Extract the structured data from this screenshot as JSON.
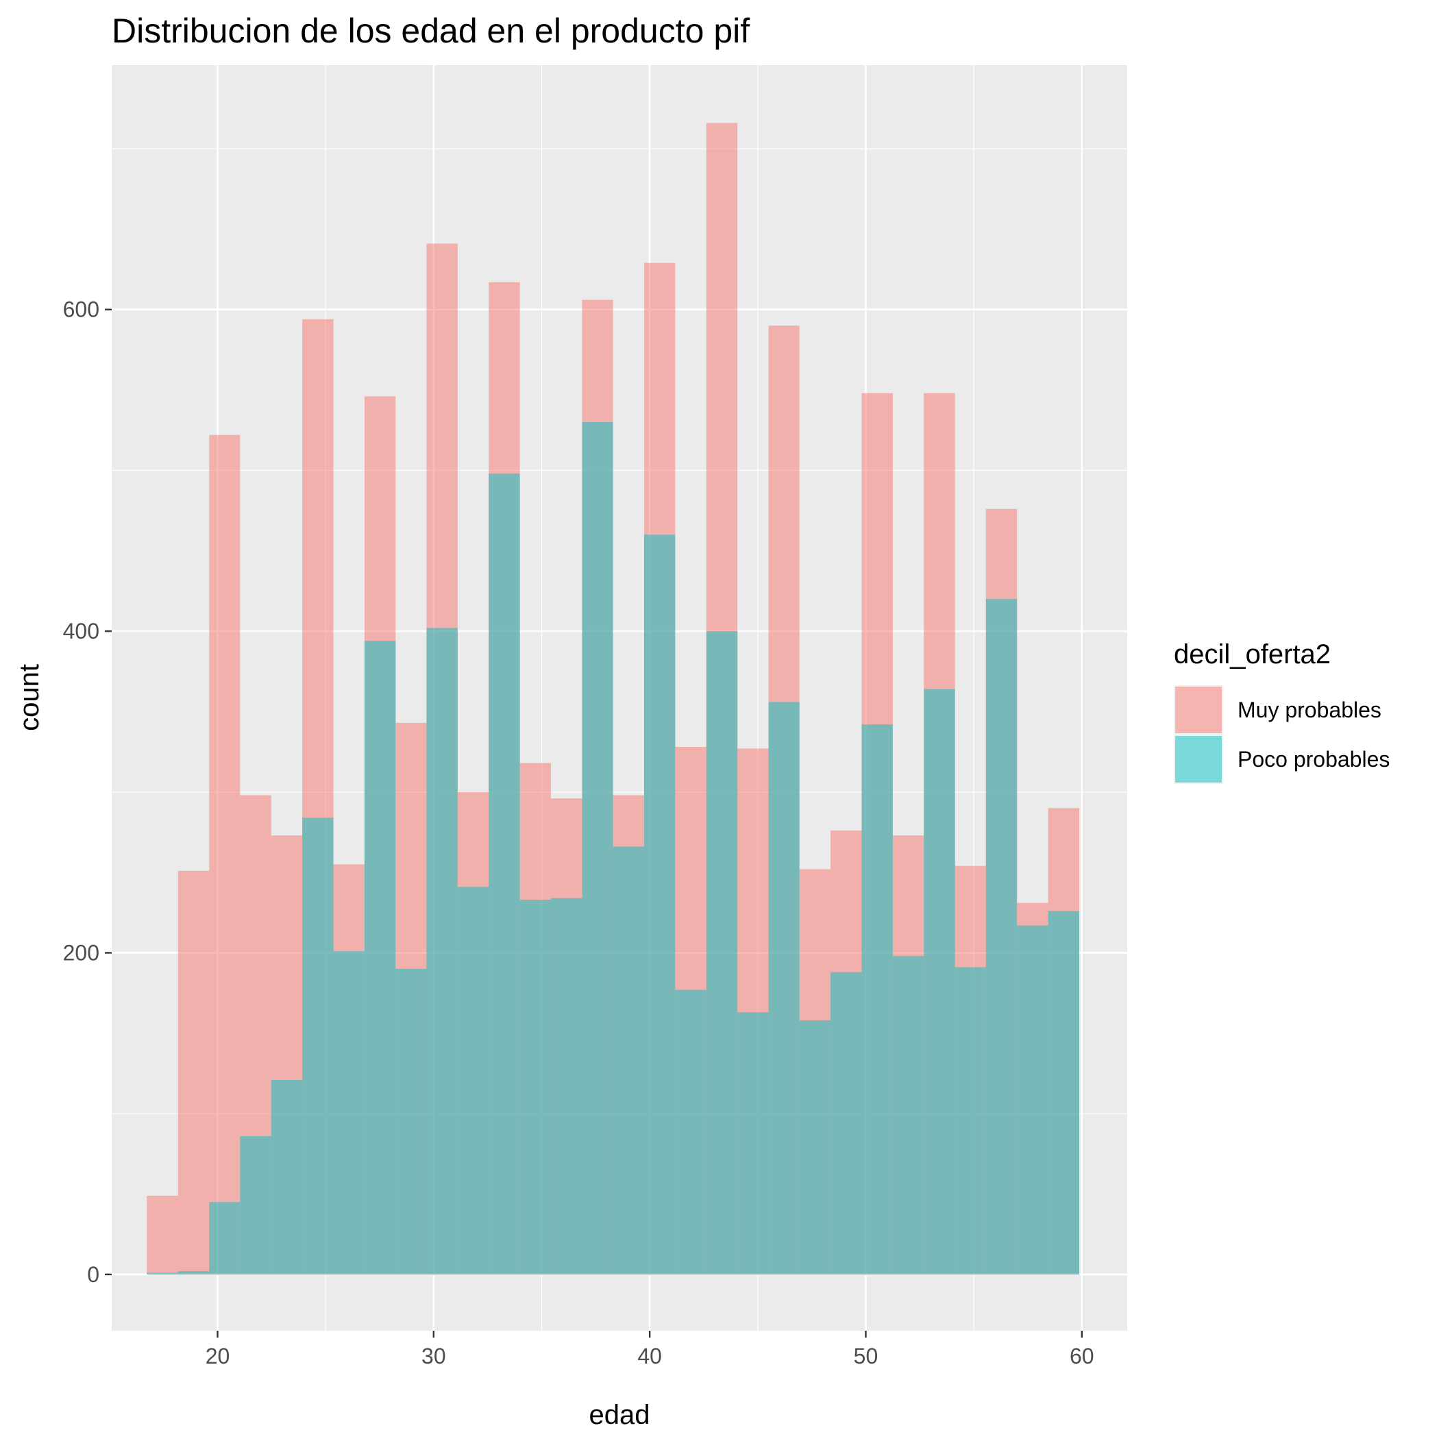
{
  "chart_data": {
    "type": "histogram",
    "title": "Distribucion de los  edad en el producto pif",
    "xlabel": "edad",
    "ylabel": "count",
    "xlim": [
      15.1,
      62.1
    ],
    "ylim": [
      -35,
      752
    ],
    "x_ticks": [
      20,
      30,
      40,
      50,
      60
    ],
    "y_ticks": [
      0,
      200,
      400,
      600
    ],
    "y_minor_ticks": [
      100,
      300,
      500,
      700
    ],
    "x_minor_ticks": [
      25,
      35,
      45,
      55
    ],
    "grid": true,
    "bin_edges": [
      16.73,
      18.17,
      19.61,
      21.04,
      22.48,
      23.92,
      25.36,
      26.8,
      28.24,
      29.67,
      31.11,
      32.55,
      33.99,
      35.43,
      36.87,
      38.3,
      39.74,
      41.18,
      42.62,
      44.06,
      45.5,
      46.93,
      48.37,
      49.81,
      51.25,
      52.69,
      54.13,
      55.56,
      57.0,
      58.44,
      59.88
    ],
    "legend": {
      "title": "decil_oferta2",
      "position": "right",
      "entries": [
        "Muy probables",
        "Poco probables"
      ]
    },
    "series": [
      {
        "name": "Muy probables",
        "color": "#F8766D",
        "opacity": 0.5,
        "values": [
          49,
          251,
          522,
          298,
          273,
          594,
          255,
          546,
          343,
          641,
          300,
          617,
          318,
          296,
          606,
          298,
          629,
          328,
          716,
          327,
          590,
          252,
          276,
          548,
          273,
          548,
          254,
          476,
          231,
          290
        ]
      },
      {
        "name": "Poco probables",
        "color": "#00BFC4",
        "opacity": 0.5,
        "values": [
          1,
          2,
          45,
          86,
          121,
          284,
          201,
          394,
          190,
          402,
          241,
          498,
          233,
          234,
          530,
          266,
          460,
          177,
          400,
          163,
          356,
          158,
          188,
          342,
          198,
          364,
          191,
          420,
          217,
          226
        ]
      }
    ]
  }
}
